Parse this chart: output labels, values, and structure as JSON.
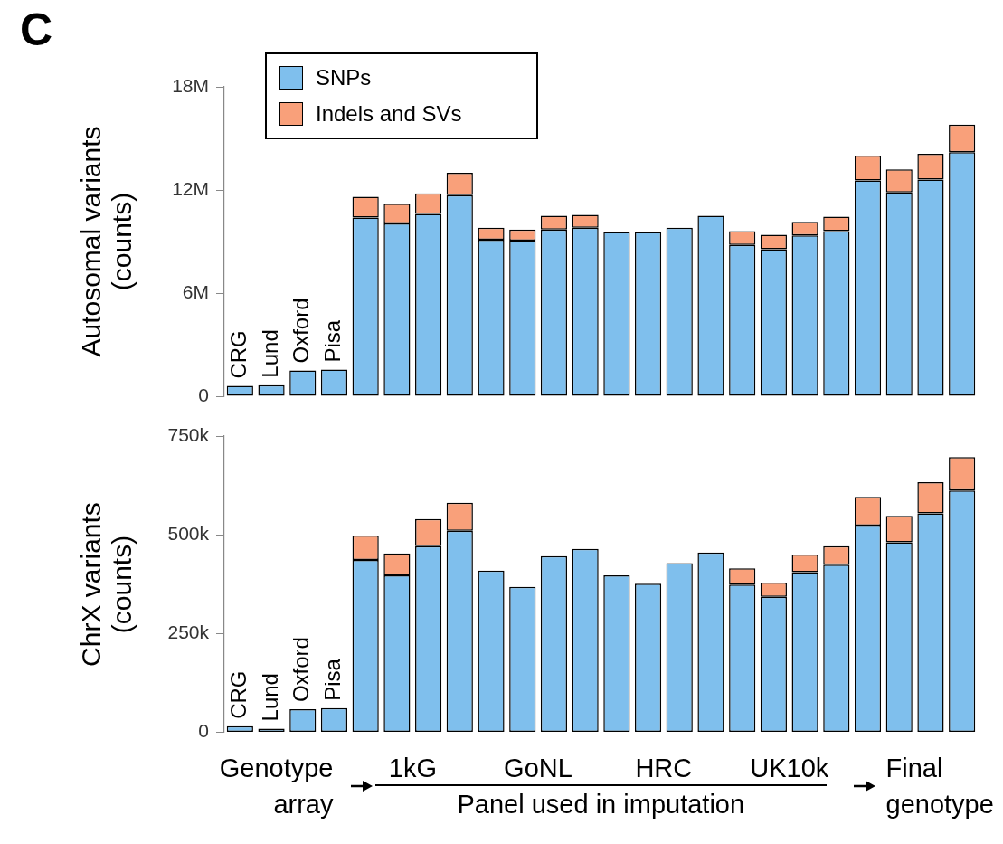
{
  "chart_data": [
    {
      "type": "bar",
      "stacked": true,
      "ylabel": "Autosomal variants (counts)",
      "legend": "top left",
      "grid": false,
      "annotations": [
        "C"
      ],
      "categories": [
        "CRG",
        "Lund",
        "Oxford",
        "Pisa",
        null,
        null,
        null,
        null,
        null,
        null,
        null,
        null,
        null,
        null,
        null,
        null,
        null,
        null,
        null,
        null,
        null,
        null,
        null,
        null
      ],
      "ylim": [
        0,
        18
      ],
      "yticks": [
        {
          "value": 0,
          "label": "0"
        },
        {
          "value": 6,
          "label": "6M"
        },
        {
          "value": 12,
          "label": "12M"
        },
        {
          "value": 18,
          "label": "18M"
        }
      ],
      "series": [
        {
          "name": "SNPs",
          "color": "#7fbfed",
          "values": [
            0.6,
            0.65,
            1.5,
            1.55,
            10.4,
            10.05,
            10.6,
            11.7,
            9.1,
            9.05,
            9.7,
            9.8,
            9.55,
            9.55,
            9.8,
            10.5,
            8.8,
            8.55,
            9.35,
            9.6,
            12.55,
            11.85,
            12.6,
            14.2
          ]
        },
        {
          "name": "Indels and SVs",
          "color": "#f9a07a",
          "values": [
            null,
            null,
            null,
            null,
            1.2,
            1.15,
            1.2,
            1.3,
            0.7,
            0.65,
            0.8,
            0.75,
            null,
            null,
            null,
            null,
            0.8,
            0.85,
            0.8,
            0.85,
            1.45,
            1.35,
            1.5,
            1.6
          ]
        }
      ]
    },
    {
      "type": "bar",
      "stacked": true,
      "ylabel": "ChrX variants (counts)",
      "grid": false,
      "annotations": [
        "Genotype array",
        "1kG",
        "GoNL",
        "HRC",
        "UK10k",
        "Panel used in imputation",
        "Final genotype"
      ],
      "categories": [
        "CRG",
        "Lund",
        "Oxford",
        "Pisa",
        null,
        null,
        null,
        null,
        null,
        null,
        null,
        null,
        null,
        null,
        null,
        null,
        null,
        null,
        null,
        null,
        null,
        null,
        null,
        null
      ],
      "ylim": [
        0,
        750
      ],
      "yticks": [
        {
          "value": 0,
          "label": "0"
        },
        {
          "value": 250,
          "label": "250k"
        },
        {
          "value": 500,
          "label": "500k"
        },
        {
          "value": 750,
          "label": "750k"
        }
      ],
      "series": [
        {
          "color": "#7fbfed",
          "values": [
            15,
            9,
            58,
            61,
            436,
            397,
            471,
            510,
            409,
            368,
            446,
            464,
            397,
            376,
            428,
            455,
            374,
            343,
            405,
            424,
            523,
            481,
            554,
            612
          ]
        },
        {
          "color": "#f9a07a",
          "values": [
            null,
            null,
            null,
            null,
            62,
            56,
            69,
            71,
            null,
            null,
            null,
            null,
            null,
            null,
            null,
            null,
            41,
            36,
            45,
            47,
            73,
            67,
            79,
            85
          ]
        }
      ]
    }
  ]
}
